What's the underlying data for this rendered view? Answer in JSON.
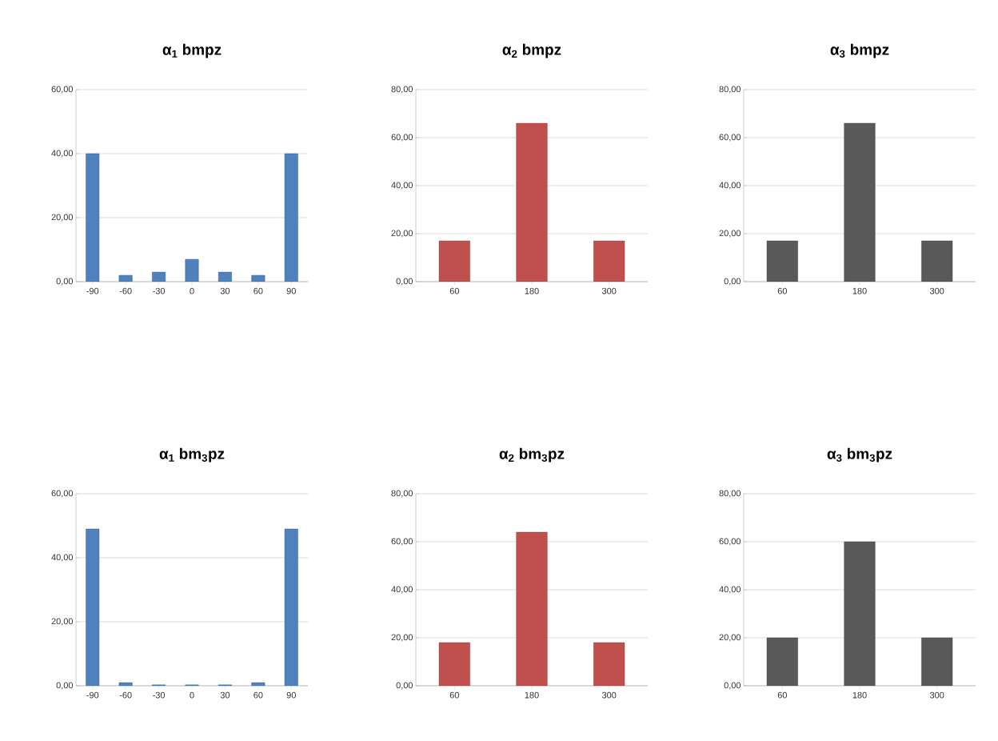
{
  "chart_data": [
    {
      "type": "bar",
      "title": "α$_{1}$ bmpz",
      "categories": [
        "-90",
        "-60",
        "-30",
        "0",
        "30",
        "60",
        "90"
      ],
      "values": [
        40,
        2,
        3,
        7,
        3,
        2,
        40
      ],
      "color": "#4f81bd",
      "ylim": [
        0,
        60
      ],
      "yticks": [
        {
          "value": 0,
          "label": "0,00"
        },
        {
          "value": 20,
          "label": "20,00"
        },
        {
          "value": 40,
          "label": "40,00"
        },
        {
          "value": 60,
          "label": "60,00"
        }
      ],
      "grid": "y"
    },
    {
      "type": "bar",
      "title": "α$_{2}$ bmpz",
      "categories": [
        "60",
        "180",
        "300"
      ],
      "values": [
        17,
        66,
        17
      ],
      "color": "#c0504d",
      "ylim": [
        0,
        80
      ],
      "yticks": [
        {
          "value": 0,
          "label": "0,00"
        },
        {
          "value": 20,
          "label": "20,00"
        },
        {
          "value": 40,
          "label": "40,00"
        },
        {
          "value": 60,
          "label": "60,00"
        },
        {
          "value": 80,
          "label": "80,00"
        }
      ],
      "grid": "y"
    },
    {
      "type": "bar",
      "title": "α$_{3}$ bmpz",
      "categories": [
        "60",
        "180",
        "300"
      ],
      "values": [
        17,
        66,
        17
      ],
      "color": "#595959",
      "ylim": [
        0,
        80
      ],
      "yticks": [
        {
          "value": 0,
          "label": "0,00"
        },
        {
          "value": 20,
          "label": "20,00"
        },
        {
          "value": 40,
          "label": "40,00"
        },
        {
          "value": 60,
          "label": "60,00"
        },
        {
          "value": 80,
          "label": "80,00"
        }
      ],
      "grid": "y"
    },
    {
      "type": "bar",
      "title": "α$_{1}$ bm$_{3}$pz",
      "categories": [
        "-90",
        "-60",
        "-30",
        "0",
        "30",
        "60",
        "90"
      ],
      "values": [
        49,
        1,
        0.3,
        0.3,
        0.3,
        1,
        49
      ],
      "color": "#4f81bd",
      "ylim": [
        0,
        60
      ],
      "yticks": [
        {
          "value": 0,
          "label": "0,00"
        },
        {
          "value": 20,
          "label": "20,00"
        },
        {
          "value": 40,
          "label": "40,00"
        },
        {
          "value": 60,
          "label": "60,00"
        }
      ],
      "grid": "y"
    },
    {
      "type": "bar",
      "title": "α$_{2}$ bm$_{3}$pz",
      "categories": [
        "60",
        "180",
        "300"
      ],
      "values": [
        18,
        64,
        18
      ],
      "color": "#c0504d",
      "ylim": [
        0,
        80
      ],
      "yticks": [
        {
          "value": 0,
          "label": "0,00"
        },
        {
          "value": 20,
          "label": "20,00"
        },
        {
          "value": 40,
          "label": "40,00"
        },
        {
          "value": 60,
          "label": "60,00"
        },
        {
          "value": 80,
          "label": "80,00"
        }
      ],
      "grid": "y"
    },
    {
      "type": "bar",
      "title": "α$_{3}$ bm$_{3}$pz",
      "categories": [
        "60",
        "180",
        "300"
      ],
      "values": [
        20,
        60,
        20
      ],
      "color": "#595959",
      "ylim": [
        0,
        80
      ],
      "yticks": [
        {
          "value": 0,
          "label": "0,00"
        },
        {
          "value": 20,
          "label": "20,00"
        },
        {
          "value": 40,
          "label": "40,00"
        },
        {
          "value": 60,
          "label": "60,00"
        },
        {
          "value": 80,
          "label": "80,00"
        }
      ],
      "grid": "y"
    }
  ]
}
